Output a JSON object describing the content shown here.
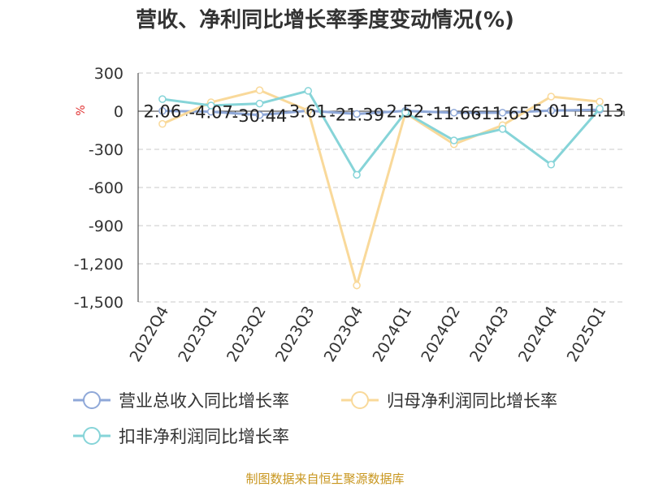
{
  "chart_data": {
    "type": "line",
    "title": "营收、净利同比增长率季度变动情况(%)",
    "unit": "%",
    "categories": [
      "2022Q4",
      "2023Q1",
      "2023Q2",
      "2023Q3",
      "2023Q4",
      "2024Q1",
      "2024Q2",
      "2024Q3",
      "2024Q4",
      "2025Q1"
    ],
    "ylim": [
      -1500,
      300
    ],
    "yticks": [
      300,
      0,
      -300,
      -600,
      -900,
      -1200,
      -1500
    ],
    "ytick_labels": [
      "300",
      "0",
      "-300",
      "-600",
      "-900",
      "-1,200",
      "-1,500"
    ],
    "grid": true,
    "legend_position": "bottom",
    "series": [
      {
        "name": "营业总收入同比增长率",
        "color": "#8fa8d8",
        "values": [
          2.06,
          -4.07,
          -30.44,
          3.61,
          -21.39,
          2.52,
          -11.66,
          -11.65,
          5.01,
          11.13
        ],
        "labels": [
          "2.06",
          "-4.07",
          "-30.44",
          "3.61",
          "-21.39",
          "2.52",
          "-11.66",
          "-11.65",
          "5.01",
          "11.13"
        ]
      },
      {
        "name": "归母净利润同比增长率",
        "color": "#f9d99a",
        "values": [
          -100,
          70,
          165,
          5,
          -1370,
          -15,
          -260,
          -110,
          115,
          75
        ]
      },
      {
        "name": "扣非净利润同比增长率",
        "color": "#86d4d8",
        "values": [
          95,
          45,
          60,
          160,
          -500,
          -10,
          -230,
          -140,
          -420,
          20
        ]
      }
    ]
  },
  "footer": {
    "source": "制图数据来自恒生聚源数据库"
  }
}
